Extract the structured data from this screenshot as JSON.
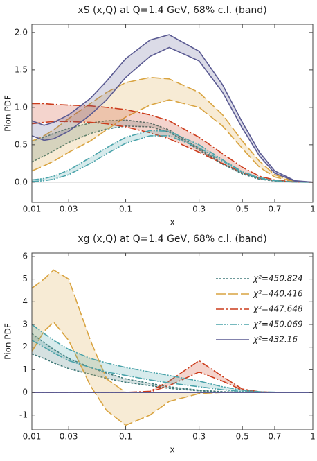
{
  "chart_data": [
    {
      "type": "band",
      "title": "xS (x,Q) at Q=1.4 GeV, 68% c.l. (band)",
      "x_label": "x",
      "y_label": "Pion PDF",
      "xscale": "power",
      "xexponent": 0.3,
      "x": [
        0.01,
        0.015,
        0.02,
        0.03,
        0.05,
        0.07,
        0.1,
        0.15,
        0.2,
        0.3,
        0.4,
        0.5,
        0.6,
        0.7,
        0.85,
        1
      ],
      "xlim": [
        0.01,
        1
      ],
      "xticks": [
        0.01,
        0.03,
        0.1,
        0.3,
        0.5,
        0.7,
        1
      ],
      "ylim": [
        -0.27,
        2.11
      ],
      "yticks": [
        {
          "value": 0,
          "label": "0.0"
        },
        {
          "value": 0.5,
          "label": "0.5"
        },
        {
          "value": 1,
          "label": "1.0"
        },
        {
          "value": 1.5,
          "label": "1.5"
        },
        {
          "value": 2,
          "label": "2.0"
        }
      ],
      "series": [
        {
          "color": "#3f7878",
          "dash": "3,2",
          "upper": [
            0.55,
            0.6,
            0.65,
            0.72,
            0.79,
            0.82,
            0.83,
            0.79,
            0.7,
            0.45,
            0.25,
            0.12,
            0.05,
            0.02,
            0.003,
            0
          ],
          "lower": [
            0.27,
            0.35,
            0.42,
            0.53,
            0.65,
            0.71,
            0.75,
            0.74,
            0.67,
            0.43,
            0.24,
            0.11,
            0.04,
            0.015,
            0.002,
            0
          ]
        },
        {
          "color": "#d9a441",
          "dash": "14,4",
          "upper": [
            0.55,
            0.62,
            0.7,
            0.85,
            1.05,
            1.2,
            1.33,
            1.4,
            1.38,
            1.2,
            0.9,
            0.55,
            0.28,
            0.1,
            0.01,
            0
          ],
          "lower": [
            0.15,
            0.22,
            0.28,
            0.4,
            0.55,
            0.7,
            0.87,
            1.03,
            1.1,
            1.0,
            0.75,
            0.45,
            0.2,
            0.07,
            0.005,
            0
          ]
        },
        {
          "color": "#cc3c1c",
          "dash": "12,3,2,3",
          "upper": [
            1.05,
            1.05,
            1.04,
            1.03,
            1.02,
            1.0,
            0.97,
            0.9,
            0.82,
            0.6,
            0.38,
            0.2,
            0.08,
            0.03,
            0.003,
            0
          ],
          "lower": [
            0.78,
            0.8,
            0.81,
            0.81,
            0.8,
            0.78,
            0.74,
            0.66,
            0.58,
            0.4,
            0.25,
            0.13,
            0.05,
            0.02,
            0.002,
            0
          ]
        },
        {
          "color": "#4aa3aa",
          "dash": "10,2,2,2,2,2",
          "upper": [
            0.03,
            0.05,
            0.08,
            0.16,
            0.33,
            0.46,
            0.6,
            0.69,
            0.68,
            0.5,
            0.3,
            0.14,
            0.06,
            0.02,
            0.002,
            0
          ],
          "lower": [
            0.01,
            0.02,
            0.04,
            0.1,
            0.25,
            0.38,
            0.52,
            0.62,
            0.62,
            0.46,
            0.28,
            0.13,
            0.05,
            0.02,
            0.002,
            0
          ]
        },
        {
          "color": "#5a5a92",
          "dash": "none",
          "upper": [
            0.82,
            0.76,
            0.8,
            0.9,
            1.12,
            1.35,
            1.65,
            1.9,
            1.97,
            1.75,
            1.3,
            0.8,
            0.4,
            0.15,
            0.02,
            0
          ],
          "lower": [
            0.62,
            0.56,
            0.58,
            0.68,
            0.9,
            1.1,
            1.4,
            1.68,
            1.8,
            1.62,
            1.2,
            0.72,
            0.35,
            0.12,
            0.015,
            0
          ]
        }
      ]
    },
    {
      "type": "band",
      "title": "xg (x,Q) at Q=1.4 GeV, 68% c.l. (band)",
      "x_label": "x",
      "y_label": "Pion PDF",
      "xscale": "power",
      "xexponent": 0.3,
      "legend": "upper right",
      "x": [
        0.01,
        0.015,
        0.02,
        0.03,
        0.05,
        0.07,
        0.1,
        0.15,
        0.2,
        0.3,
        0.4,
        0.5,
        0.6,
        0.7,
        0.85,
        1
      ],
      "xlim": [
        0.01,
        1
      ],
      "xticks": [
        0.01,
        0.03,
        0.1,
        0.3,
        0.5,
        0.7,
        1
      ],
      "ylim": [
        -1.65,
        6.15
      ],
      "yticks": [
        -1,
        0,
        1,
        2,
        3,
        4,
        5,
        6
      ],
      "series": [
        {
          "name": "χ²=450.824",
          "color": "#3f7878",
          "dash": "3,2",
          "upper": [
            2.6,
            2.2,
            1.9,
            1.5,
            1.1,
            0.85,
            0.6,
            0.4,
            0.25,
            0.1,
            0.03,
            0.01,
            0,
            0,
            0,
            0
          ],
          "lower": [
            1.7,
            1.5,
            1.3,
            1.05,
            0.8,
            0.62,
            0.45,
            0.3,
            0.18,
            0.07,
            0.02,
            0.005,
            0,
            0,
            0,
            0
          ]
        },
        {
          "name": "χ²=440.416",
          "color": "#d9a441",
          "dash": "14,4",
          "upper": [
            4.6,
            5.0,
            5.4,
            5.0,
            2.3,
            0.6,
            0,
            0,
            0,
            0,
            0,
            0,
            0,
            0,
            0,
            0
          ],
          "lower": [
            1.8,
            2.7,
            3.1,
            2.3,
            0.3,
            -0.8,
            -1.45,
            -1.0,
            -0.4,
            -0.05,
            0,
            0,
            0,
            0,
            0,
            0
          ]
        },
        {
          "name": "χ²=447.648",
          "color": "#cc3c1c",
          "dash": "12,3,2,3",
          "upper": [
            0,
            0,
            0,
            0,
            0,
            0,
            0,
            0.05,
            0.5,
            1.4,
            0.7,
            0.15,
            0.03,
            0,
            0,
            0
          ],
          "lower": [
            0,
            0,
            0,
            0,
            0,
            0,
            0,
            0.02,
            0.3,
            0.9,
            0.5,
            0.1,
            0.02,
            0,
            0,
            0
          ]
        },
        {
          "name": "χ²=450.069",
          "color": "#4aa3aa",
          "dash": "10,2,2,2,2,2",
          "upper": [
            3.0,
            2.6,
            2.3,
            1.9,
            1.5,
            1.3,
            1.1,
            0.9,
            0.75,
            0.5,
            0.25,
            0.1,
            0.03,
            0.01,
            0,
            0
          ],
          "lower": [
            2.3,
            2.0,
            1.75,
            1.4,
            1.1,
            0.9,
            0.75,
            0.55,
            0.42,
            0.25,
            0.12,
            0.04,
            0.01,
            0,
            0,
            0
          ]
        },
        {
          "name": "χ²=432.16",
          "color": "#5a5a92",
          "dash": "none",
          "upper": [
            0,
            0,
            0,
            0,
            0,
            0,
            0,
            0,
            0,
            0,
            0,
            0,
            0,
            0,
            0,
            0
          ],
          "lower": [
            0,
            0,
            0,
            0,
            0,
            0,
            0,
            0,
            0,
            0,
            0,
            0,
            0,
            0,
            0,
            0
          ]
        }
      ]
    }
  ]
}
